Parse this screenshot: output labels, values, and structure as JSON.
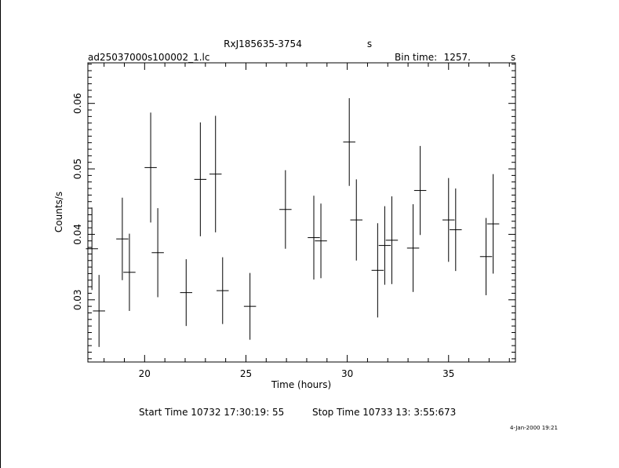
{
  "header": {
    "object": "RxJ185635-3754",
    "object_unit": "s",
    "filename": "ad25037000s100002_1.lc",
    "bin_time_label": "Bin time:",
    "bin_time_value": "1257.",
    "bin_time_unit": "s"
  },
  "footer": {
    "start_time": "Start Time 10732 17:30:19: 55",
    "stop_time": "Stop Time 10733 13: 3:55:673",
    "date_stamp": "4-Jan-2000 19:21"
  },
  "chart_data": {
    "type": "scatter",
    "xlabel": "Time (hours)",
    "ylabel": "Counts/s",
    "xlim": [
      17.2,
      38.3
    ],
    "ylim": [
      0.0205,
      0.0662
    ],
    "x_ticks": [
      20,
      25,
      30,
      35
    ],
    "x_tick_labels": [
      "20",
      "25",
      "30",
      "35"
    ],
    "y_ticks": [
      0.03,
      0.04,
      0.05,
      0.06
    ],
    "y_tick_labels": [
      "0.03",
      "0.04",
      "0.05",
      "0.06"
    ],
    "grid": false,
    "series": [
      {
        "x": [
          17.4,
          17.75,
          18.9,
          19.25,
          20.3,
          20.65,
          22.05,
          22.75,
          23.5,
          23.85,
          25.2,
          26.95,
          28.35,
          28.7,
          30.1,
          30.45,
          31.5,
          31.85,
          32.2,
          33.25,
          33.6,
          35.0,
          35.35,
          36.85,
          37.2
        ],
        "y": [
          0.0378,
          0.0283,
          0.0393,
          0.0342,
          0.0502,
          0.0372,
          0.0311,
          0.0484,
          0.0492,
          0.0314,
          0.029,
          0.0438,
          0.0395,
          0.039,
          0.0541,
          0.0422,
          0.0345,
          0.0383,
          0.0391,
          0.0379,
          0.0467,
          0.0422,
          0.0407,
          0.0366,
          0.0416
        ],
        "yerr": [
          0.0063,
          0.0055,
          0.0063,
          0.0059,
          0.0084,
          0.0068,
          0.0051,
          0.0087,
          0.0089,
          0.0051,
          0.0051,
          0.006,
          0.0064,
          0.0057,
          0.0067,
          0.0062,
          0.0072,
          0.006,
          0.0067,
          0.0067,
          0.0068,
          0.0064,
          0.0063,
          0.0059,
          0.0076
        ],
        "xerr": [
          0.3,
          0.3,
          0.3,
          0.3,
          0.3,
          0.3,
          0.3,
          0.3,
          0.3,
          0.3,
          0.3,
          0.3,
          0.3,
          0.3,
          0.3,
          0.3,
          0.3,
          0.3,
          0.3,
          0.3,
          0.3,
          0.3,
          0.3,
          0.3,
          0.3
        ]
      }
    ]
  }
}
